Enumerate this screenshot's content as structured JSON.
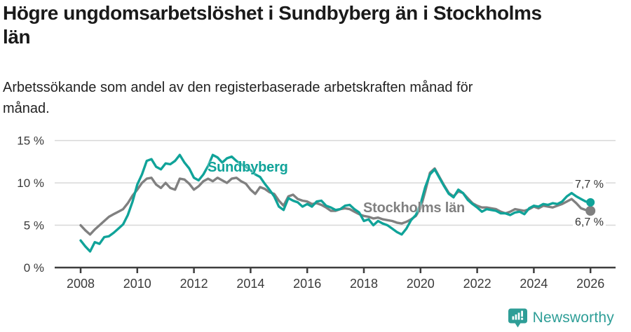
{
  "header": {
    "title_lines": {
      "line1": "Högre ungdomsarbetslöshet i Sundbyberg än i Stockholms",
      "line2": "län"
    },
    "subtitle_lines": {
      "line1": "Arbetssökande som andel av den registerbaserade arbetskraften månad för",
      "line2": "månad."
    }
  },
  "chart_data": {
    "type": "line",
    "title": "Högre ungdomsarbetslöshet i Sundbyberg än i Stockholms län",
    "subtitle": "Arbetssökande som andel av den registerbaserade arbetskraften månad för månad.",
    "xlabel": "",
    "ylabel": "",
    "x_unit": "year (monthly data)",
    "y_unit": "%",
    "x_start": 2008.0,
    "x_step_years": 0.1666667,
    "xlim": [
      2007.1,
      2026.9
    ],
    "ylim": [
      0,
      15
    ],
    "grid": "horizontal",
    "x_ticks": [
      2008,
      2010,
      2012,
      2014,
      2016,
      2018,
      2020,
      2022,
      2024,
      2026
    ],
    "x_tick_labels": [
      "2008",
      "2010",
      "2012",
      "2014",
      "2016",
      "2018",
      "2020",
      "2022",
      "2024",
      "2026"
    ],
    "y_ticks": [
      0,
      5,
      10,
      15
    ],
    "y_tick_labels": [
      "0 %",
      "5 %",
      "10 %",
      "15 %"
    ],
    "legend_position": "inline-labels",
    "series": [
      {
        "name": "Stockholms län",
        "color": "#808080",
        "dot_radius": 7,
        "end_value": 6.7,
        "end_label": "6,7 %",
        "values": [
          5.0,
          4.4,
          3.9,
          4.5,
          5.0,
          5.5,
          6.0,
          6.3,
          6.6,
          6.9,
          7.6,
          8.5,
          9.2,
          10.0,
          10.5,
          10.6,
          9.8,
          9.4,
          10.0,
          9.4,
          9.2,
          10.5,
          10.4,
          9.9,
          9.2,
          9.6,
          10.2,
          10.5,
          10.2,
          10.6,
          10.3,
          10.0,
          10.5,
          10.6,
          10.2,
          9.9,
          9.2,
          8.7,
          9.5,
          9.3,
          8.9,
          8.7,
          7.9,
          7.3,
          8.4,
          8.6,
          8.1,
          7.9,
          7.8,
          7.5,
          7.6,
          7.4,
          7.1,
          6.7,
          6.7,
          6.9,
          7.0,
          6.9,
          6.6,
          6.3,
          6.1,
          6.0,
          5.8,
          5.9,
          5.7,
          5.6,
          5.5,
          5.3,
          5.2,
          5.4,
          5.7,
          6.1,
          7.0,
          9.0,
          11.2,
          11.7,
          10.7,
          9.7,
          8.8,
          8.4,
          9.0,
          8.8,
          8.2,
          7.6,
          7.3,
          7.1,
          7.1,
          7.0,
          6.9,
          6.6,
          6.4,
          6.6,
          6.9,
          6.8,
          6.7,
          6.9,
          7.2,
          7.0,
          7.3,
          7.2,
          7.1,
          7.3,
          7.5,
          7.8,
          8.1,
          7.6,
          7.0,
          6.8,
          6.7
        ]
      },
      {
        "name": "Sundbyberg",
        "color": "#10a399",
        "dot_radius": 6,
        "end_value": 7.7,
        "end_label": "7,7 %",
        "values": [
          3.2,
          2.5,
          1.9,
          3.0,
          2.8,
          3.6,
          3.7,
          4.1,
          4.6,
          5.1,
          6.2,
          7.8,
          9.8,
          11.0,
          12.6,
          12.8,
          11.9,
          11.6,
          12.3,
          12.2,
          12.6,
          13.3,
          12.4,
          11.7,
          10.6,
          10.3,
          11.0,
          12.0,
          13.3,
          13.0,
          12.4,
          12.9,
          13.1,
          12.6,
          12.2,
          11.9,
          11.5,
          11.0,
          10.7,
          9.9,
          9.2,
          8.4,
          7.2,
          6.8,
          8.2,
          7.9,
          7.7,
          7.2,
          7.5,
          7.2,
          7.8,
          7.9,
          7.3,
          7.1,
          6.8,
          6.9,
          7.3,
          7.4,
          6.9,
          6.5,
          5.5,
          5.7,
          5.0,
          5.5,
          5.2,
          5.0,
          4.6,
          4.2,
          3.9,
          4.6,
          5.6,
          6.2,
          7.5,
          9.5,
          11.0,
          11.6,
          10.6,
          9.6,
          8.7,
          8.3,
          9.2,
          8.8,
          8.0,
          7.5,
          7.1,
          6.6,
          6.9,
          6.8,
          6.7,
          6.4,
          6.4,
          6.2,
          6.5,
          6.6,
          6.3,
          7.0,
          7.3,
          7.2,
          7.5,
          7.4,
          7.6,
          7.5,
          7.8,
          8.4,
          8.8,
          8.4,
          8.1,
          7.8,
          7.7
        ]
      }
    ],
    "annotations": {
      "sundbyberg_label": "Sundbyberg",
      "stockholm_label": "Stockholms län",
      "end_label_high": "7,7 %",
      "end_label_low": "6,7 %"
    }
  },
  "colors": {
    "sundbyberg": "#10a399",
    "stockholm": "#808080",
    "grid": "#d8d8d8",
    "axis": "#3d3d3d",
    "axis_text": "#3a3a3a",
    "brand": "#2e9e97"
  },
  "footer": {
    "brand": "Newsworthy"
  }
}
